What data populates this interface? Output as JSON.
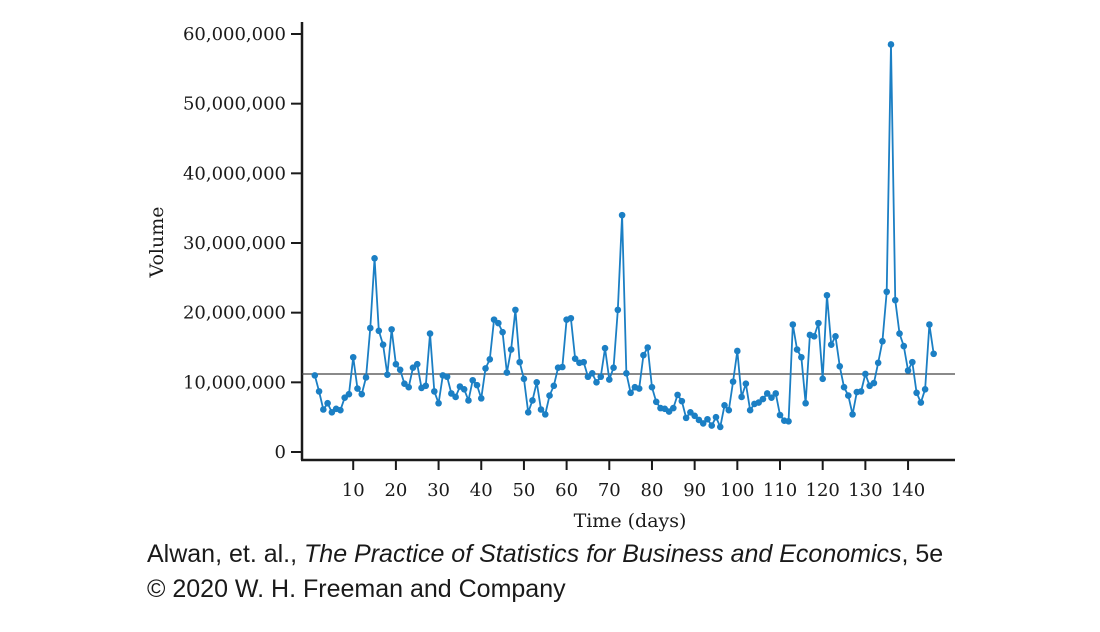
{
  "chart_data": {
    "type": "line",
    "title": "",
    "xlabel": "Time (days)",
    "ylabel": "Volume",
    "xlim": [
      -2,
      151
    ],
    "ylim": [
      0,
      60000000
    ],
    "xticks": [
      10,
      20,
      30,
      40,
      50,
      60,
      70,
      80,
      90,
      100,
      110,
      120,
      130,
      140
    ],
    "yticks": [
      0,
      10000000,
      20000000,
      30000000,
      40000000,
      50000000,
      60000000
    ],
    "ytick_labels": [
      "0",
      "10,000,000",
      "20,000,000",
      "30,000,000",
      "40,000,000",
      "50,000,000",
      "60,000,000"
    ],
    "reference_line": {
      "y": 11200000
    },
    "grid": false,
    "colors": {
      "series": "#1b7fc4",
      "reference": "#444444",
      "axis": "#1a1a1a"
    },
    "series": [
      {
        "x": [
          1,
          2,
          3,
          4,
          5,
          6,
          7,
          8,
          9,
          10,
          11,
          12,
          13,
          14,
          15,
          16,
          17,
          18,
          19,
          20,
          21,
          22,
          23,
          24,
          25,
          26,
          27,
          28,
          29,
          30,
          31,
          32,
          33,
          34,
          35,
          36,
          37,
          38,
          39,
          40,
          41,
          42,
          43,
          44,
          45,
          46,
          47,
          48,
          49,
          50,
          51,
          52,
          53,
          54,
          55,
          56,
          57,
          58,
          59,
          60,
          61,
          62,
          63,
          64,
          65,
          66,
          67,
          68,
          69,
          70,
          71,
          72,
          73,
          74,
          75,
          76,
          77,
          78,
          79,
          80,
          81,
          82,
          83,
          84,
          85,
          86,
          87,
          88,
          89,
          90,
          91,
          92,
          93,
          94,
          95,
          96,
          97,
          98,
          99,
          100,
          101,
          102,
          103,
          104,
          105,
          106,
          107,
          108,
          109,
          110,
          111,
          112,
          113,
          114,
          115,
          116,
          117,
          118,
          119,
          120,
          121,
          122,
          123,
          124,
          125,
          126,
          127,
          128,
          129,
          130,
          131,
          132,
          133,
          134,
          135,
          136,
          137,
          138,
          139,
          140,
          141,
          142,
          143,
          144,
          145,
          146
        ],
        "values": [
          11000000,
          8700000,
          6100000,
          7000000,
          5700000,
          6200000,
          6000000,
          7800000,
          8300000,
          13600000,
          9100000,
          8300000,
          10700000,
          17800000,
          27800000,
          17400000,
          15400000,
          11100000,
          17600000,
          12600000,
          11800000,
          9800000,
          9300000,
          12100000,
          12600000,
          9200000,
          9500000,
          17000000,
          8700000,
          7000000,
          11000000,
          10800000,
          8400000,
          7900000,
          9400000,
          9000000,
          7400000,
          10300000,
          9600000,
          7700000,
          12000000,
          13300000,
          19000000,
          18500000,
          17200000,
          11400000,
          14700000,
          20400000,
          12900000,
          10500000,
          5700000,
          7400000,
          10000000,
          6100000,
          5400000,
          8100000,
          9500000,
          12100000,
          12200000,
          19000000,
          19200000,
          13400000,
          12800000,
          12900000,
          10800000,
          11300000,
          10000000,
          10800000,
          14900000,
          10400000,
          12100000,
          20400000,
          34000000,
          11300000,
          8500000,
          9300000,
          9100000,
          13900000,
          15000000,
          9300000,
          7200000,
          6300000,
          6200000,
          5800000,
          6300000,
          8200000,
          7300000,
          4900000,
          5700000,
          5200000,
          4600000,
          4100000,
          4700000,
          3800000,
          5000000,
          3600000,
          6700000,
          6000000,
          10100000,
          14500000,
          7900000,
          9800000,
          6000000,
          6900000,
          7100000,
          7600000,
          8400000,
          7800000,
          8400000,
          5300000,
          4500000,
          4400000,
          18300000,
          14700000,
          13600000,
          7000000,
          16800000,
          16600000,
          18500000,
          10500000,
          22500000,
          15400000,
          16600000,
          12300000,
          9300000,
          8100000,
          5400000,
          8600000,
          8700000,
          11200000,
          9500000,
          9900000,
          12800000,
          15900000,
          23000000,
          58500000,
          21800000,
          17000000,
          15200000,
          11700000,
          12900000,
          8500000,
          7100000,
          9000000,
          18300000,
          14100000
        ]
      }
    ]
  },
  "credit": {
    "authors": "Alwan, et. al., ",
    "book_title": "The Practice of Statistics for Business and Economics",
    "edition": ", 5e",
    "copyright": "© 2020 W. H. Freeman and Company"
  }
}
